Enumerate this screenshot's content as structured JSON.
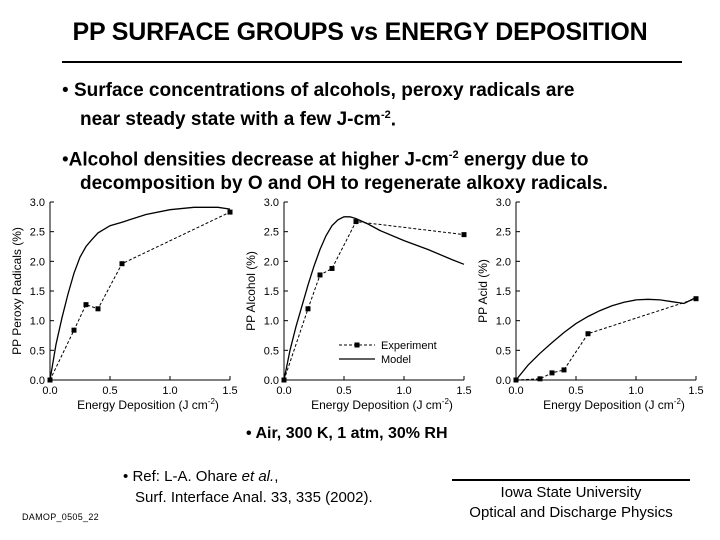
{
  "title": "PP SURFACE GROUPS vs ENERGY DEPOSITION",
  "bullets": [
    {
      "pre": "Surface concentrations of alcohols, peroxy radicals are",
      "cont": "near steady state with a few J-cm",
      "sup": "-2",
      "post": "."
    },
    {
      "pre": "Alcohol densities decrease at higher J-cm",
      "sup": "-2",
      "post": " energy due to",
      "cont": "decomposition by O and OH to regenerate alkoxy radicals."
    }
  ],
  "bullet_symbol": "•",
  "chart_data": [
    {
      "type": "line",
      "ylabel": "PP Peroxy Radicals (%)",
      "xlabel": "Energy Deposition (J cm",
      "xlabel_sup": "-2",
      "xlabel_end": ")",
      "xlim": [
        0,
        1.5
      ],
      "ylim": [
        0,
        3.0
      ],
      "xticks": [
        "0.0",
        "0.5",
        "1.0",
        "1.5"
      ],
      "yticks": [
        "0.0",
        "0.5",
        "1.0",
        "1.5",
        "2.0",
        "2.5",
        "3.0"
      ],
      "series": [
        {
          "name": "Experiment",
          "style": "dashed-square",
          "x": [
            0,
            0.2,
            0.3,
            0.4,
            0.6,
            1.5
          ],
          "y": [
            0.0,
            0.84,
            1.27,
            1.2,
            1.96,
            2.83
          ]
        },
        {
          "name": "Model",
          "style": "solid",
          "x": [
            0,
            0.05,
            0.1,
            0.15,
            0.2,
            0.25,
            0.3,
            0.35,
            0.4,
            0.5,
            0.6,
            0.8,
            1.0,
            1.2,
            1.4,
            1.5
          ],
          "y": [
            0,
            0.6,
            1.05,
            1.45,
            1.8,
            2.07,
            2.25,
            2.37,
            2.48,
            2.6,
            2.66,
            2.79,
            2.87,
            2.91,
            2.91,
            2.88
          ]
        }
      ]
    },
    {
      "type": "line",
      "ylabel": "PP Alcohol (%)",
      "xlabel": "Energy Deposition (J cm",
      "xlabel_sup": "-2",
      "xlabel_end": ")",
      "xlim": [
        0,
        1.5
      ],
      "ylim": [
        0,
        3.0
      ],
      "xticks": [
        "0.0",
        "0.5",
        "1.0",
        "1.5"
      ],
      "yticks": [
        "0.0",
        "0.5",
        "1.0",
        "1.5",
        "2.0",
        "2.5",
        "3.0"
      ],
      "legend": {
        "position": "bottom-right",
        "entries": [
          "Experiment",
          "Model"
        ]
      },
      "series": [
        {
          "name": "Experiment",
          "style": "dashed-square",
          "x": [
            0,
            0.2,
            0.3,
            0.4,
            0.6,
            1.5
          ],
          "y": [
            0.0,
            1.2,
            1.77,
            1.88,
            2.67,
            2.45
          ]
        },
        {
          "name": "Model",
          "style": "solid",
          "x": [
            0,
            0.05,
            0.1,
            0.15,
            0.2,
            0.25,
            0.3,
            0.35,
            0.4,
            0.45,
            0.5,
            0.55,
            0.6,
            0.7,
            0.8,
            1.0,
            1.2,
            1.4,
            1.5
          ],
          "y": [
            0,
            0.5,
            0.9,
            1.25,
            1.6,
            1.92,
            2.2,
            2.43,
            2.6,
            2.7,
            2.75,
            2.75,
            2.72,
            2.63,
            2.52,
            2.35,
            2.2,
            2.03,
            1.95
          ]
        }
      ]
    },
    {
      "type": "line",
      "ylabel": "PP Acid (%)",
      "xlabel": "Energy Deposition (J cm",
      "xlabel_sup": "-2",
      "xlabel_end": ")",
      "xlim": [
        0,
        1.5
      ],
      "ylim": [
        0,
        3.0
      ],
      "xticks": [
        "0.0",
        "0.5",
        "1.0",
        "1.5"
      ],
      "yticks": [
        "0.0",
        "0.5",
        "1.0",
        "1.5",
        "2.0",
        "2.5",
        "3.0"
      ],
      "series": [
        {
          "name": "Experiment",
          "style": "dashed-square",
          "x": [
            0,
            0.2,
            0.3,
            0.4,
            0.6,
            1.5
          ],
          "y": [
            0.0,
            0.02,
            0.12,
            0.17,
            0.78,
            1.37
          ]
        },
        {
          "name": "Model",
          "style": "solid",
          "x": [
            0,
            0.1,
            0.2,
            0.3,
            0.4,
            0.5,
            0.6,
            0.7,
            0.8,
            0.9,
            1.0,
            1.1,
            1.2,
            1.3,
            1.4,
            1.5
          ],
          "y": [
            0,
            0.25,
            0.45,
            0.63,
            0.8,
            0.95,
            1.07,
            1.17,
            1.25,
            1.31,
            1.35,
            1.36,
            1.35,
            1.32,
            1.29,
            1.39
          ]
        }
      ]
    }
  ],
  "conditions": "• Air, 300 K, 1 atm, 30% RH",
  "reference": {
    "bullet": "•",
    "prefix": "Ref: L-A. Ohare ",
    "etal": "et al.",
    "suffix": ",",
    "line2": "Surf. Interface Anal. 33, 335 (2002)."
  },
  "slide_code": "DAMOP_0505_22",
  "affiliation": {
    "line1": "Iowa State University",
    "line2": "Optical and Discharge Physics"
  }
}
